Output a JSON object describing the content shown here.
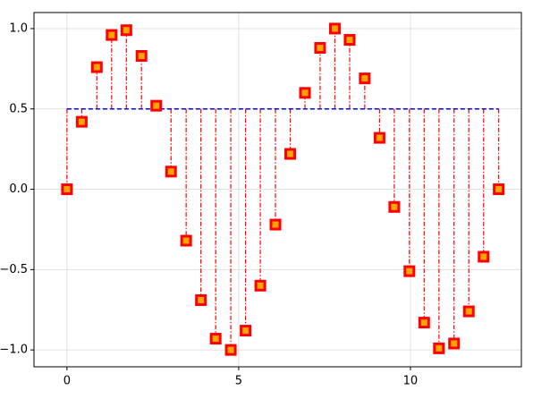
{
  "chart_data": {
    "type": "stem",
    "x": [
      0,
      0.43,
      0.87,
      1.3,
      1.73,
      2.17,
      2.6,
      3.03,
      3.47,
      3.9,
      4.33,
      4.77,
      5.2,
      5.63,
      6.07,
      6.5,
      6.93,
      7.37,
      7.8,
      8.23,
      8.67,
      9.1,
      9.53,
      9.97,
      10.4,
      10.83,
      11.27,
      11.7,
      12.13,
      12.57
    ],
    "values": [
      0,
      0.42,
      0.76,
      0.96,
      0.99,
      0.83,
      0.52,
      0.11,
      -0.32,
      -0.69,
      -0.93,
      -1.0,
      -0.88,
      -0.6,
      -0.22,
      0.22,
      0.6,
      0.88,
      1.0,
      0.93,
      0.69,
      0.32,
      -0.11,
      -0.51,
      -0.83,
      -0.99,
      -0.96,
      -0.76,
      -0.42,
      0
    ],
    "baseline": 0.5,
    "marker_color": "#ffa500",
    "marker_edge_color": "#ff0000",
    "stem_color": "#ff0000",
    "baseline_color": "#0000ff",
    "xlim": [
      -0.96,
      13.23
    ],
    "ylim": [
      -1.105,
      1.1
    ],
    "xticks": [
      0,
      5,
      10
    ],
    "yticks": [
      {
        "value": 1.0,
        "label": "1.0"
      },
      {
        "value": 0.5,
        "label": "0.5"
      },
      {
        "value": 0.0,
        "label": "0.0"
      },
      {
        "value": -0.5,
        "label": "−0.5"
      },
      {
        "value": -1.0,
        "label": "−1.0"
      }
    ],
    "grid": true
  }
}
